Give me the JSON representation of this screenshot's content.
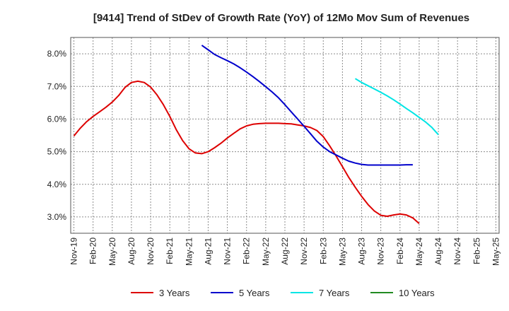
{
  "chart_data": {
    "type": "line",
    "title": "[9414]  Trend of StDev of Growth Rate (YoY) of 12Mo Mov Sum of Revenues",
    "xlabel": "",
    "ylabel": "",
    "ylim": [
      2.5,
      8.5
    ],
    "yticks": [
      3.0,
      4.0,
      5.0,
      6.0,
      7.0,
      8.0
    ],
    "ytick_labels": [
      "3.0%",
      "4.0%",
      "5.0%",
      "6.0%",
      "7.0%",
      "8.0%"
    ],
    "x_count": 67,
    "x_tick_indices": [
      0,
      3,
      6,
      9,
      12,
      15,
      18,
      21,
      24,
      27,
      30,
      33,
      36,
      39,
      42,
      45,
      48,
      51,
      54,
      57,
      60,
      63,
      66
    ],
    "x_tick_labels": [
      "Nov-19",
      "Feb-20",
      "May-20",
      "Aug-20",
      "Nov-20",
      "Feb-21",
      "May-21",
      "Aug-21",
      "Nov-21",
      "Feb-22",
      "May-22",
      "Aug-22",
      "Nov-22",
      "Feb-23",
      "May-23",
      "Aug-23",
      "Nov-23",
      "Feb-24",
      "May-24",
      "Aug-24",
      "Nov-24",
      "Feb-25",
      "May-25"
    ],
    "grid": true,
    "legend_position": "bottom",
    "series": [
      {
        "name": "3 Years",
        "color": "#dd0000",
        "start_index": 0,
        "values": [
          5.48,
          5.72,
          5.92,
          6.08,
          6.22,
          6.36,
          6.52,
          6.72,
          6.97,
          7.12,
          7.16,
          7.12,
          6.98,
          6.74,
          6.44,
          6.08,
          5.68,
          5.34,
          5.09,
          4.96,
          4.94,
          5.0,
          5.12,
          5.26,
          5.42,
          5.56,
          5.7,
          5.79,
          5.84,
          5.86,
          5.87,
          5.87,
          5.87,
          5.86,
          5.85,
          5.82,
          5.79,
          5.74,
          5.65,
          5.46,
          5.18,
          4.87,
          4.54,
          4.21,
          3.91,
          3.63,
          3.38,
          3.18,
          3.05,
          3.02,
          3.06,
          3.09,
          3.06,
          2.97,
          2.8
        ]
      },
      {
        "name": "5 Years",
        "color": "#0000cc",
        "start_index": 20,
        "values": [
          8.26,
          8.12,
          7.98,
          7.88,
          7.79,
          7.69,
          7.57,
          7.44,
          7.3,
          7.15,
          6.99,
          6.83,
          6.65,
          6.44,
          6.22,
          6.0,
          5.78,
          5.55,
          5.32,
          5.14,
          5.0,
          4.9,
          4.8,
          4.71,
          4.65,
          4.61,
          4.59,
          4.59,
          4.59,
          4.59,
          4.59,
          4.59,
          4.6,
          4.6
        ]
      },
      {
        "name": "7 Years",
        "color": "#00e5e5",
        "start_index": 44,
        "values": [
          7.24,
          7.12,
          7.02,
          6.92,
          6.82,
          6.71,
          6.59,
          6.46,
          6.32,
          6.19,
          6.05,
          5.91,
          5.74,
          5.52
        ]
      },
      {
        "name": "10 Years",
        "color": "#228b22",
        "start_index": 0,
        "values": []
      }
    ]
  }
}
